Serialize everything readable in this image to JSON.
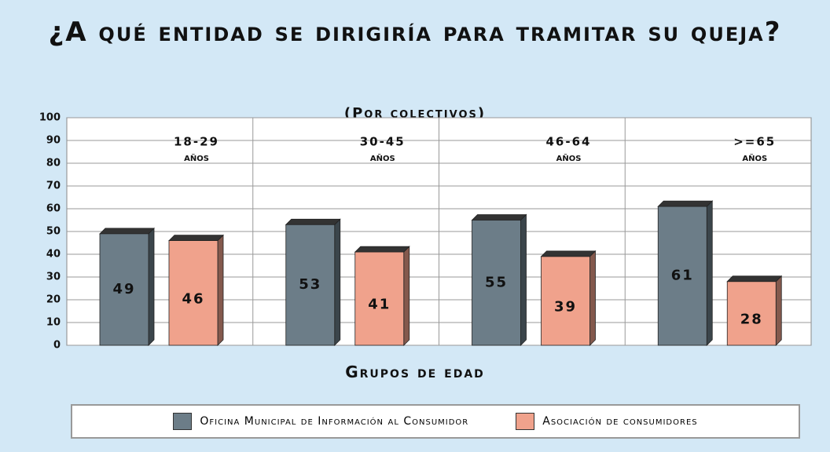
{
  "chart_data": {
    "type": "bar",
    "title": "¿A qué entidad se dirigiría para tramitar su queja?",
    "subtitle": "(Por colectivos)",
    "x_label": "Grupos de edad",
    "categories": [
      [
        "18-29",
        "años"
      ],
      [
        "30-45",
        "años"
      ],
      [
        "46-64",
        "años"
      ],
      [
        ">=65",
        "años"
      ]
    ],
    "series": [
      {
        "name": "Oficina Municipal de Información al Consumidor",
        "color": "#6c7d88",
        "values": [
          49,
          53,
          55,
          61
        ]
      },
      {
        "name": "Asociación de consumidores",
        "color": "#f0a28c",
        "values": [
          46,
          41,
          39,
          28
        ]
      }
    ],
    "ylim": [
      0,
      100
    ],
    "yticks": [
      0,
      10,
      20,
      30,
      40,
      50,
      60,
      70,
      80,
      90,
      100
    ],
    "grid": true
  }
}
